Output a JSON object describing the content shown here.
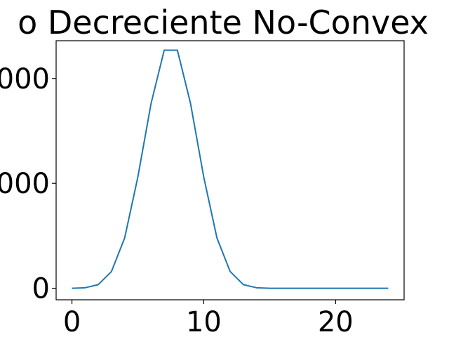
{
  "chart_data": {
    "type": "line",
    "title": "o Decreciente No-Convex",
    "xlabel": "",
    "ylabel": "",
    "xlim": [
      -1.2,
      25.2
    ],
    "ylim": [
      -110,
      2360
    ],
    "grid": false,
    "legend": "none",
    "x_ticks": [
      {
        "value": 0,
        "label": "0"
      },
      {
        "value": 10,
        "label": "10"
      },
      {
        "value": 20,
        "label": "20"
      }
    ],
    "y_ticks": [
      {
        "value": 0,
        "label": "0"
      },
      {
        "value": 1000,
        "label": "000"
      },
      {
        "value": 2000,
        "label": "000"
      }
    ],
    "series": [
      {
        "color": "#1f77b4",
        "x": [
          0,
          1,
          2,
          3,
          4,
          5,
          6,
          7,
          8,
          9,
          10,
          11,
          12,
          13,
          14,
          15,
          16,
          17,
          18,
          19,
          20,
          21,
          22,
          23,
          24
        ],
        "y": [
          0,
          5,
          35,
          160,
          480,
          1060,
          1760,
          2270,
          2270,
          1760,
          1060,
          480,
          160,
          35,
          5,
          0,
          0,
          0,
          0,
          0,
          0,
          0,
          0,
          0,
          0
        ]
      }
    ]
  }
}
